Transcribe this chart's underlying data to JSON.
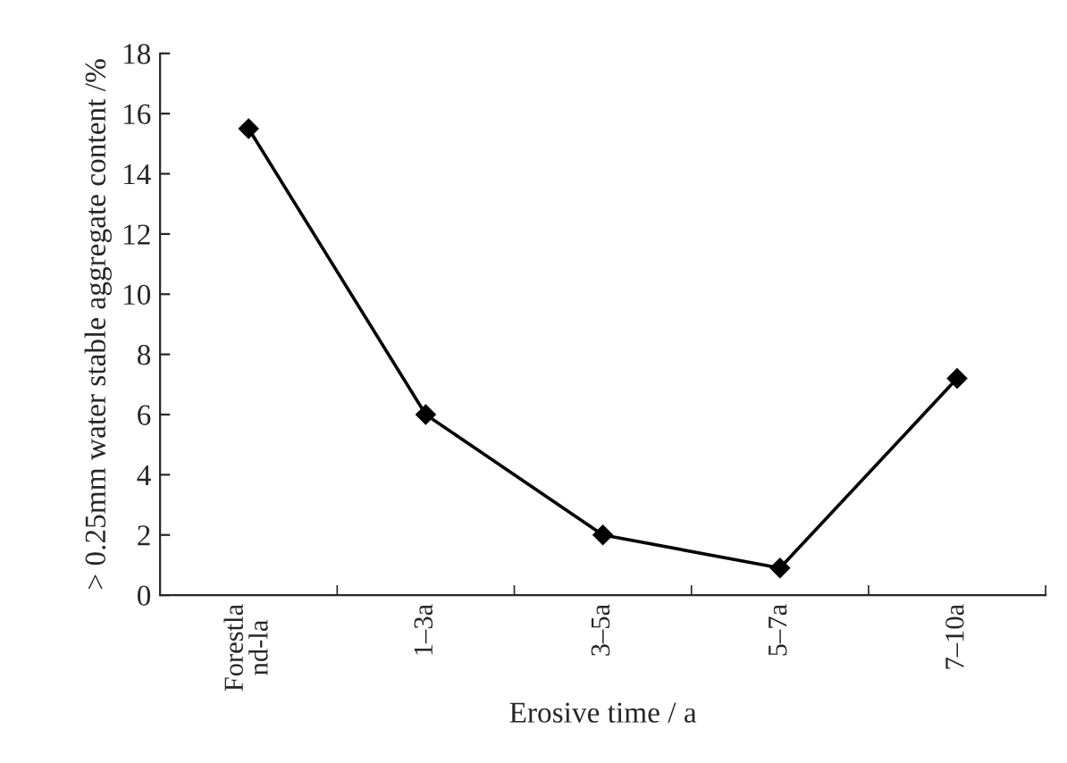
{
  "chart_data": {
    "type": "line",
    "xlabel": "Erosive time / a",
    "ylabel": "> 0.25mm water stable aggregate content /%",
    "categories": [
      "Forestla\nnd-la",
      "1–3a",
      "3–5a",
      "5–7a",
      "7–10a"
    ],
    "series": [
      {
        "color": "#000000",
        "values": [
          15.5,
          6.0,
          2.0,
          0.9,
          7.2
        ]
      }
    ],
    "ylim": [
      0,
      18
    ],
    "yticks": [
      0,
      2,
      4,
      6,
      8,
      10,
      12,
      14,
      16,
      18
    ],
    "marker": "diamond",
    "line_style": "solid",
    "grid": false,
    "legend": false
  }
}
